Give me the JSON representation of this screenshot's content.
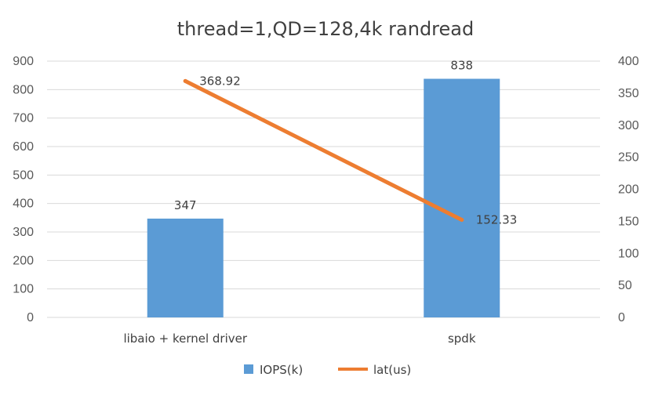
{
  "chart_data": {
    "type": "bar",
    "title": "thread=1,QD=128,4k randread",
    "categories": [
      "libaio + kernel driver",
      "spdk"
    ],
    "series": [
      {
        "name": "IOPS(k)",
        "type": "bar",
        "axis": "left",
        "values": [
          347,
          838
        ],
        "data_labels": [
          "347",
          "838"
        ]
      },
      {
        "name": "lat(us)",
        "type": "line",
        "axis": "right",
        "values": [
          368.92,
          152.33
        ],
        "data_labels": [
          "368.92",
          "152.33"
        ]
      }
    ],
    "y_left": {
      "min": 0,
      "max": 900,
      "step": 100,
      "ticks": [
        "0",
        "100",
        "200",
        "300",
        "400",
        "500",
        "600",
        "700",
        "800",
        "900"
      ]
    },
    "y_right": {
      "min": 0,
      "max": 400,
      "step": 50,
      "ticks": [
        "0",
        "50",
        "100",
        "150",
        "200",
        "250",
        "300",
        "350",
        "400"
      ]
    },
    "grid": true,
    "legend": {
      "placement": "bottom"
    },
    "colors": {
      "bar": "#5B9BD5",
      "line": "#ED7D31",
      "grid": "#D9D9D9",
      "text": "#404040"
    }
  }
}
